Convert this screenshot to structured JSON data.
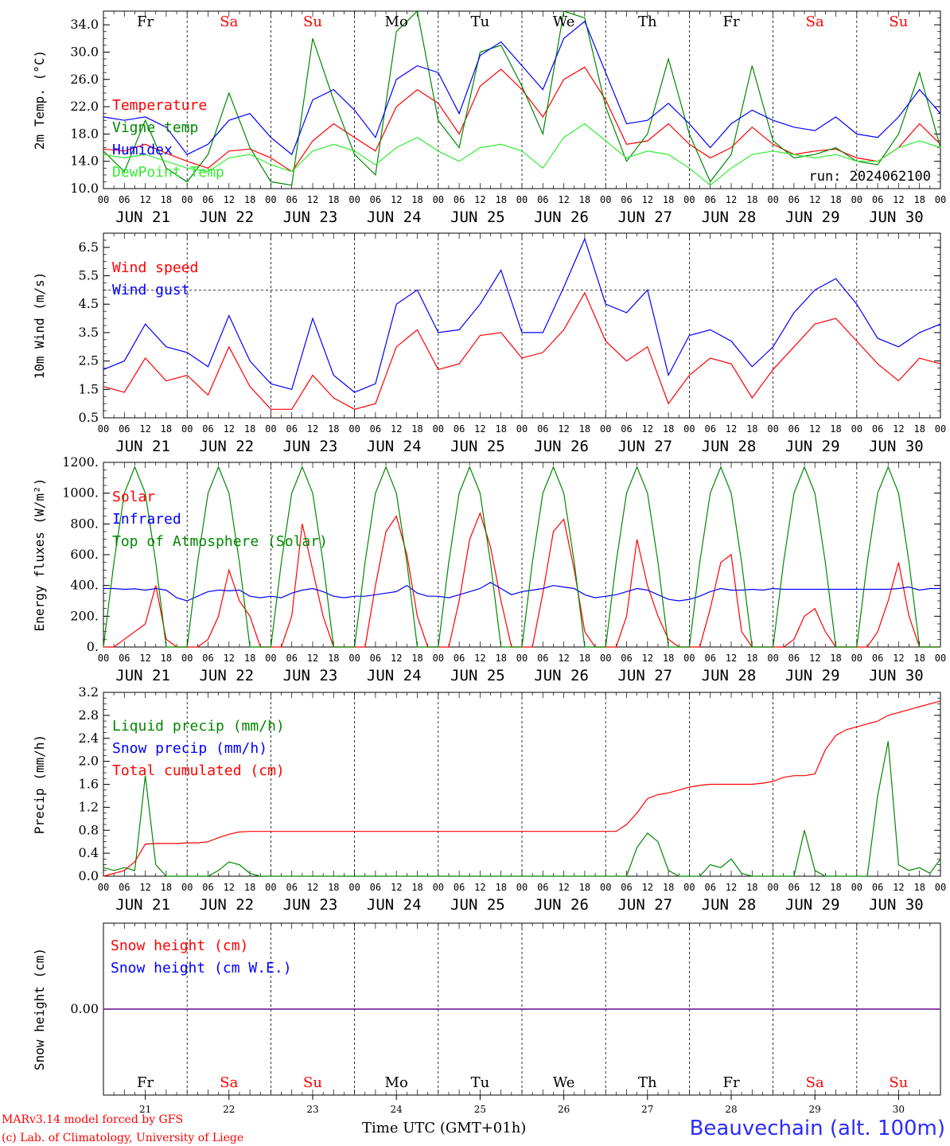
{
  "colors": {
    "red": "#ff0000",
    "green": "#008800",
    "blue": "#0000ff",
    "lightgreen": "#33ee33",
    "purple": "#7a2a9a",
    "dark": "#000000"
  },
  "days": [
    {
      "abbr": "Fr",
      "date": "JUN 21",
      "num": "21",
      "color": "#000000"
    },
    {
      "abbr": "Sa",
      "date": "JUN 22",
      "num": "22",
      "color": "#ff0000"
    },
    {
      "abbr": "Su",
      "date": "JUN 23",
      "num": "23",
      "color": "#ff0000"
    },
    {
      "abbr": "Mo",
      "date": "JUN 24",
      "num": "24",
      "color": "#000000"
    },
    {
      "abbr": "Tu",
      "date": "JUN 25",
      "num": "25",
      "color": "#000000"
    },
    {
      "abbr": "We",
      "date": "JUN 26",
      "num": "26",
      "color": "#000000"
    },
    {
      "abbr": "Th",
      "date": "JUN 27",
      "num": "27",
      "color": "#000000"
    },
    {
      "abbr": "Fr",
      "date": "JUN 28",
      "num": "28",
      "color": "#000000"
    },
    {
      "abbr": "Sa",
      "date": "JUN 29",
      "num": "29",
      "color": "#ff0000"
    },
    {
      "abbr": "Su",
      "date": "JUN 30",
      "num": "30",
      "color": "#ff0000"
    }
  ],
  "hour_labels": [
    "00",
    "06",
    "12",
    "18"
  ],
  "final_hour_label": "00",
  "footer": {
    "model": "MARv3.14 model forced by GFS",
    "lab": "(c) Lab. of Climatology, University of Liege",
    "xlabel": "Time UTC (GMT+01h)",
    "station": "Beauvechain (alt. 100m)"
  },
  "chart_data": [
    {
      "type": "line",
      "ylabel": "2m Temp. (°C)",
      "ylim": [
        10,
        36
      ],
      "yticks": [
        "10.0",
        "14.0",
        "18.0",
        "22.0",
        "26.0",
        "30.0",
        "34.0"
      ],
      "annotation": "run: 2024062100",
      "x_hours": [
        0,
        6,
        12,
        18,
        24,
        30,
        36,
        42,
        48,
        54,
        60,
        66,
        72,
        78,
        84,
        90,
        96,
        102,
        108,
        114,
        120,
        126,
        132,
        138,
        144,
        150,
        156,
        162,
        168,
        174,
        180,
        186,
        192,
        198,
        204,
        210,
        216,
        222,
        228,
        234,
        240
      ],
      "series": [
        {
          "name": "Temperature",
          "color": "#ff0000",
          "values": [
            15.8,
            15.5,
            16.5,
            15.2,
            14.0,
            13.0,
            15.5,
            15.8,
            14.5,
            12.5,
            17.0,
            19.5,
            17.5,
            15.5,
            22.0,
            24.5,
            22.5,
            18.0,
            25.0,
            27.5,
            24.5,
            20.5,
            26.0,
            27.8,
            23.0,
            16.5,
            17.0,
            19.5,
            16.5,
            14.5,
            16.0,
            19.0,
            16.5,
            15.0,
            15.5,
            15.8,
            14.5,
            14.0,
            16.0,
            19.5,
            16.5
          ]
        },
        {
          "name": "Vigne temp",
          "color": "#008800",
          "values": [
            15.5,
            12.5,
            20.0,
            13.0,
            11.0,
            15.0,
            24.0,
            16.0,
            11.0,
            10.5,
            32.0,
            23.0,
            15.0,
            12.0,
            33.0,
            36.0,
            20.0,
            16.0,
            30.0,
            31.0,
            25.0,
            18.0,
            36.0,
            35.0,
            22.0,
            14.0,
            18.0,
            29.0,
            18.0,
            11.0,
            15.0,
            28.0,
            17.0,
            14.5,
            15.0,
            16.0,
            14.0,
            13.5,
            18.0,
            27.0,
            16.0
          ]
        },
        {
          "name": "Humidex",
          "color": "#0000ff",
          "values": [
            20.5,
            20.0,
            20.5,
            19.0,
            15.0,
            16.5,
            20.0,
            21.0,
            17.5,
            15.0,
            23.0,
            24.5,
            21.5,
            17.5,
            26.0,
            28.0,
            27.0,
            21.0,
            29.5,
            31.5,
            28.0,
            24.5,
            32.0,
            34.5,
            27.0,
            19.5,
            20.0,
            22.5,
            19.5,
            16.0,
            19.5,
            21.5,
            20.0,
            19.0,
            18.5,
            20.5,
            18.0,
            17.5,
            20.5,
            24.5,
            21.0
          ]
        },
        {
          "name": "DewPoint Temp",
          "color": "#33ee33",
          "values": [
            15.0,
            14.5,
            15.0,
            14.0,
            13.0,
            12.5,
            14.5,
            15.0,
            13.5,
            12.5,
            15.5,
            16.5,
            15.5,
            13.5,
            16.0,
            17.5,
            15.5,
            14.0,
            16.0,
            16.5,
            15.5,
            13.0,
            17.5,
            19.5,
            17.0,
            14.5,
            15.5,
            15.0,
            13.0,
            10.5,
            13.0,
            15.0,
            15.5,
            15.0,
            14.5,
            15.0,
            14.0,
            14.0,
            16.0,
            17.0,
            16.0
          ]
        }
      ]
    },
    {
      "type": "line",
      "ylabel": "10m Wind (m/s)",
      "ylim": [
        0.5,
        7.0
      ],
      "yticks": [
        "0.5",
        "1.5",
        "2.5",
        "3.5",
        "4.5",
        "5.5",
        "6.5"
      ],
      "ref_line": 5.0,
      "x_hours": [
        0,
        6,
        12,
        18,
        24,
        30,
        36,
        42,
        48,
        54,
        60,
        66,
        72,
        78,
        84,
        90,
        96,
        102,
        108,
        114,
        120,
        126,
        132,
        138,
        144,
        150,
        156,
        162,
        168,
        174,
        180,
        186,
        192,
        198,
        204,
        210,
        216,
        222,
        228,
        234,
        240
      ],
      "series": [
        {
          "name": "Wind speed",
          "color": "#ff0000",
          "values": [
            1.6,
            1.4,
            2.6,
            1.8,
            2.0,
            1.3,
            3.0,
            1.6,
            0.8,
            0.8,
            2.0,
            1.2,
            0.8,
            1.0,
            3.0,
            3.6,
            2.2,
            2.4,
            3.4,
            3.5,
            2.6,
            2.8,
            3.6,
            4.9,
            3.2,
            2.5,
            3.0,
            1.0,
            2.0,
            2.6,
            2.4,
            1.2,
            2.2,
            3.0,
            3.8,
            4.0,
            3.2,
            2.4,
            1.8,
            2.6,
            2.4
          ]
        },
        {
          "name": "Wind gust",
          "color": "#0000ff",
          "values": [
            2.2,
            2.5,
            3.8,
            3.0,
            2.8,
            2.3,
            4.1,
            2.5,
            1.7,
            1.5,
            4.0,
            2.0,
            1.4,
            1.7,
            4.5,
            5.0,
            3.5,
            3.6,
            4.5,
            5.7,
            3.5,
            3.5,
            5.1,
            6.8,
            4.5,
            4.2,
            5.0,
            2.0,
            3.4,
            3.6,
            3.2,
            2.3,
            3.0,
            4.2,
            5.0,
            5.4,
            4.5,
            3.3,
            3.0,
            3.5,
            3.8
          ]
        }
      ]
    },
    {
      "type": "line",
      "ylabel": "Energy fluxes (W/m²)",
      "ylim": [
        0,
        1200
      ],
      "yticks": [
        "0.",
        "200.",
        "400.",
        "600.",
        "800.",
        "1000.",
        "1200."
      ],
      "x_hours": [
        0,
        3,
        6,
        9,
        12,
        15,
        18,
        21,
        24,
        27,
        30,
        33,
        36,
        39,
        42,
        45,
        48,
        51,
        54,
        57,
        60,
        63,
        66,
        69,
        72,
        75,
        78,
        81,
        84,
        87,
        90,
        93,
        96,
        99,
        102,
        105,
        108,
        111,
        114,
        117,
        120,
        123,
        126,
        129,
        132,
        135,
        138,
        141,
        144,
        147,
        150,
        153,
        156,
        159,
        162,
        165,
        168,
        171,
        174,
        177,
        180,
        183,
        186,
        189,
        192,
        195,
        198,
        201,
        204,
        207,
        210,
        213,
        216,
        219,
        222,
        225,
        228,
        231,
        234,
        237,
        240
      ],
      "series": [
        {
          "name": "Solar",
          "color": "#ff0000",
          "values": [
            0,
            0,
            50,
            100,
            150,
            400,
            50,
            0,
            0,
            0,
            50,
            200,
            500,
            300,
            200,
            0,
            0,
            0,
            200,
            800,
            500,
            200,
            0,
            0,
            0,
            0,
            400,
            750,
            850,
            600,
            200,
            0,
            0,
            0,
            300,
            700,
            870,
            650,
            300,
            0,
            0,
            0,
            350,
            750,
            830,
            500,
            100,
            0,
            0,
            0,
            200,
            700,
            400,
            200,
            50,
            0,
            0,
            0,
            250,
            550,
            600,
            100,
            0,
            0,
            0,
            0,
            50,
            200,
            250,
            100,
            0,
            0,
            0,
            0,
            100,
            300,
            550,
            200,
            0,
            0,
            0
          ]
        },
        {
          "name": "Infrared",
          "color": "#0000ff",
          "values": [
            380,
            380,
            375,
            378,
            370,
            380,
            370,
            320,
            300,
            330,
            360,
            370,
            365,
            370,
            330,
            320,
            330,
            320,
            350,
            370,
            380,
            360,
            330,
            320,
            330,
            330,
            340,
            350,
            360,
            400,
            350,
            330,
            330,
            320,
            340,
            360,
            380,
            420,
            380,
            340,
            360,
            370,
            380,
            400,
            390,
            380,
            340,
            320,
            330,
            340,
            360,
            380,
            370,
            340,
            310,
            300,
            310,
            330,
            360,
            380,
            370,
            370,
            375,
            370,
            380,
            375,
            375,
            375,
            375,
            375,
            375,
            375,
            375,
            375,
            375,
            375,
            380,
            390,
            370,
            380,
            380
          ]
        },
        {
          "name": "Top of Atmosphere (Solar)",
          "color": "#008800",
          "values": [
            0,
            550,
            1000,
            1170,
            1000,
            550,
            0,
            0,
            0,
            550,
            1000,
            1170,
            1000,
            550,
            0,
            0,
            0,
            550,
            1000,
            1170,
            1000,
            550,
            0,
            0,
            0,
            550,
            1000,
            1170,
            1000,
            550,
            0,
            0,
            0,
            550,
            1000,
            1170,
            1000,
            550,
            0,
            0,
            0,
            550,
            1000,
            1170,
            1000,
            550,
            0,
            0,
            0,
            550,
            1000,
            1170,
            1000,
            550,
            0,
            0,
            0,
            550,
            1000,
            1170,
            1000,
            550,
            0,
            0,
            0,
            550,
            1000,
            1170,
            1000,
            550,
            0,
            0,
            0,
            550,
            1000,
            1170,
            1000,
            550,
            0,
            0,
            0
          ]
        }
      ]
    },
    {
      "type": "line",
      "ylabel": "Precip (mm/h)",
      "ylim": [
        0,
        3.2
      ],
      "yticks": [
        "0.0",
        "0.4",
        "0.8",
        "1.2",
        "1.6",
        "2.0",
        "2.4",
        "2.8",
        "3.2"
      ],
      "x_hours": [
        0,
        3,
        6,
        9,
        12,
        15,
        18,
        21,
        24,
        27,
        30,
        33,
        36,
        39,
        42,
        45,
        48,
        51,
        54,
        57,
        60,
        63,
        66,
        69,
        72,
        75,
        78,
        81,
        84,
        87,
        90,
        93,
        96,
        99,
        102,
        105,
        108,
        111,
        114,
        117,
        120,
        123,
        126,
        129,
        132,
        135,
        138,
        141,
        144,
        147,
        150,
        153,
        156,
        159,
        162,
        165,
        168,
        171,
        174,
        177,
        180,
        183,
        186,
        189,
        192,
        195,
        198,
        201,
        204,
        207,
        210,
        213,
        216,
        219,
        222,
        225,
        228,
        231,
        234,
        237,
        240
      ],
      "series": [
        {
          "name": "Liquid precip (mm/h)",
          "color": "#008800",
          "values": [
            0.15,
            0.1,
            0.15,
            0.1,
            1.75,
            0.2,
            0,
            0,
            0,
            0,
            0,
            0.1,
            0.25,
            0.2,
            0.05,
            0,
            0,
            0,
            0,
            0,
            0,
            0,
            0,
            0,
            0,
            0,
            0,
            0,
            0,
            0,
            0,
            0,
            0,
            0,
            0,
            0,
            0,
            0,
            0,
            0,
            0,
            0,
            0,
            0,
            0,
            0,
            0,
            0,
            0,
            0,
            0,
            0.5,
            0.75,
            0.6,
            0.1,
            0,
            0,
            0,
            0.2,
            0.15,
            0.3,
            0.05,
            0,
            0,
            0,
            0,
            0,
            0.8,
            0.1,
            0,
            0,
            0,
            0,
            0,
            1.4,
            2.35,
            0.2,
            0.1,
            0.15,
            0.05,
            0.3
          ]
        },
        {
          "name": "Snow precip (mm/h)",
          "color": "#0000ff",
          "values": []
        },
        {
          "name": "Total cumulated (cm)",
          "color": "#ff0000",
          "values": [
            0,
            0.05,
            0.1,
            0.25,
            0.56,
            0.57,
            0.57,
            0.57,
            0.58,
            0.58,
            0.6,
            0.67,
            0.73,
            0.77,
            0.78,
            0.78,
            0.78,
            0.78,
            0.78,
            0.78,
            0.78,
            0.78,
            0.78,
            0.78,
            0.78,
            0.78,
            0.78,
            0.78,
            0.78,
            0.78,
            0.78,
            0.78,
            0.78,
            0.78,
            0.78,
            0.78,
            0.78,
            0.78,
            0.78,
            0.78,
            0.78,
            0.78,
            0.78,
            0.78,
            0.78,
            0.78,
            0.78,
            0.78,
            0.78,
            0.78,
            0.9,
            1.1,
            1.35,
            1.42,
            1.45,
            1.5,
            1.55,
            1.58,
            1.6,
            1.6,
            1.6,
            1.6,
            1.6,
            1.62,
            1.65,
            1.72,
            1.75,
            1.75,
            1.78,
            2.2,
            2.45,
            2.55,
            2.6,
            2.65,
            2.7,
            2.8,
            2.85,
            2.9,
            2.95,
            3.0,
            3.05
          ]
        }
      ]
    },
    {
      "type": "line",
      "ylabel": "Snow height (cm)",
      "ylim": [
        -1,
        1
      ],
      "yticks": [
        "0.00"
      ],
      "x_hours": [
        0,
        240
      ],
      "series": [
        {
          "name": "Snow height (cm)",
          "color": "#ff0000",
          "values": [
            0,
            0
          ]
        },
        {
          "name": "Snow height (cm W.E.)",
          "color": "#0000ff",
          "values": [
            0,
            0
          ]
        }
      ]
    }
  ]
}
